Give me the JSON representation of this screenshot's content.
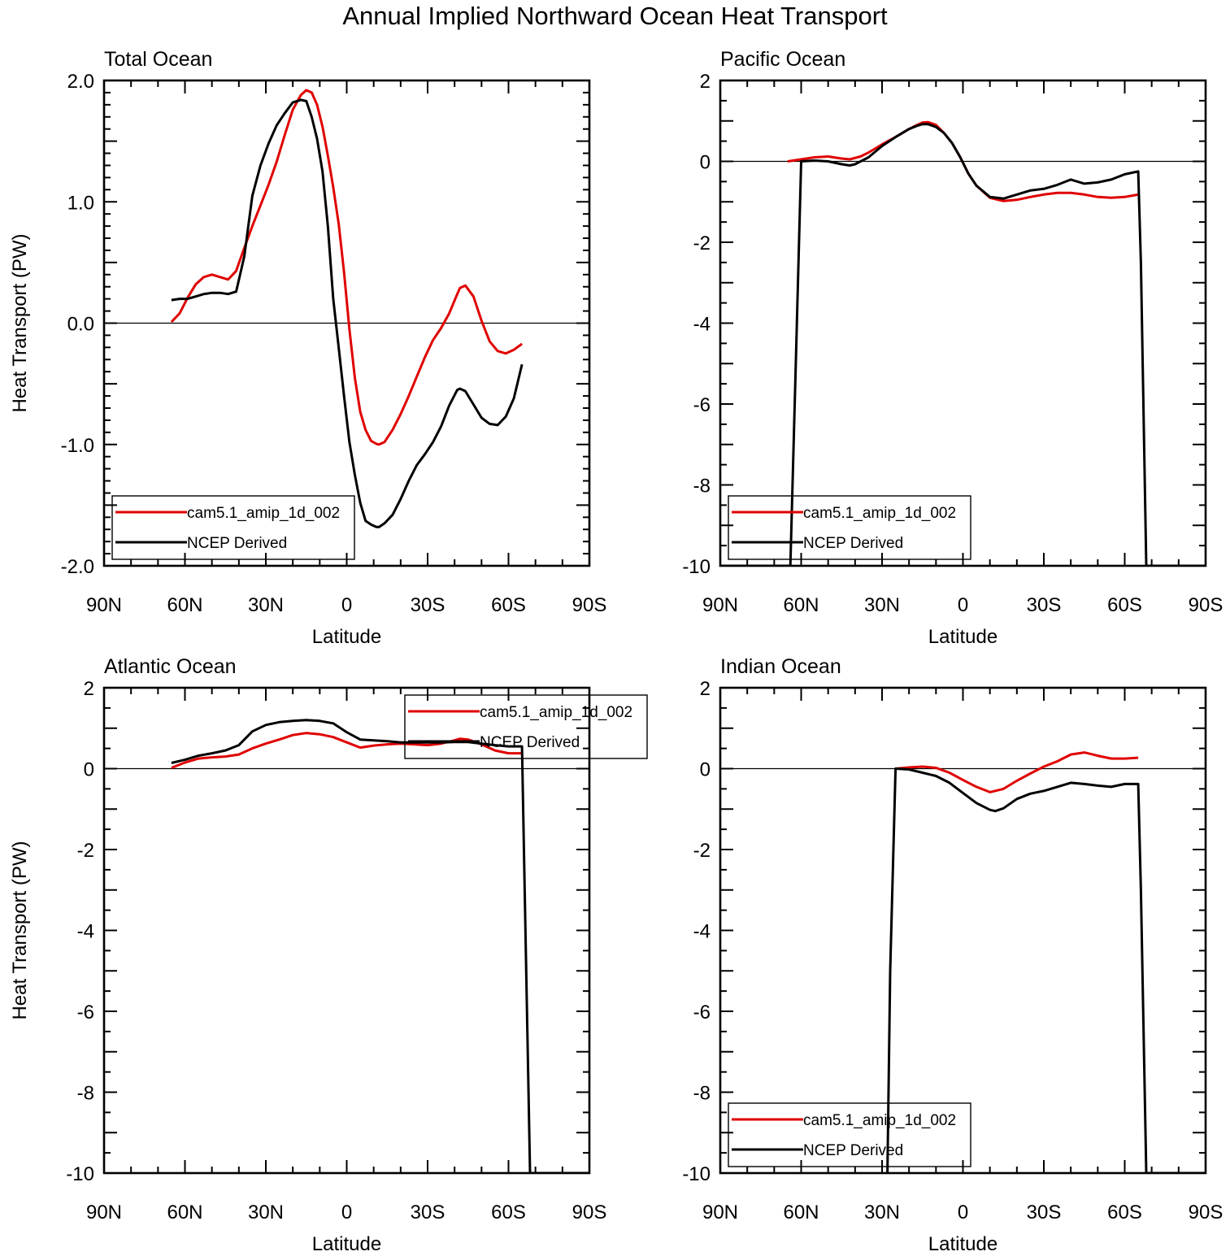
{
  "title": "Annual Implied Northward Ocean Heat Transport",
  "colors": {
    "model": "#e00000",
    "obs": "#000000",
    "axis": "#000000"
  },
  "chart_data": [
    {
      "type": "line",
      "title": "Total Ocean",
      "xlabel": "Latitude",
      "ylabel": "Heat Transport (PW)",
      "xlim": [
        90,
        -90
      ],
      "ylim": [
        -2.0,
        2.0
      ],
      "xticks": [
        90,
        60,
        30,
        0,
        -30,
        -60,
        -90
      ],
      "xticklabels": [
        "90N",
        "60N",
        "30N",
        "0",
        "30S",
        "60S",
        "90S"
      ],
      "yticks": [
        -2,
        -1,
        0,
        1,
        2
      ],
      "yticklabels": [
        "-2.0",
        "-1.0",
        "0.0",
        "1.0",
        "2.0"
      ],
      "ymajor_step": 0.5,
      "yminor_step": 0.1,
      "legend": {
        "position": "bottom-left",
        "entries": [
          "cam5.1_amip_1d_002",
          "NCEP Derived"
        ]
      },
      "series": [
        {
          "name": "cam5.1_amip_1d_002",
          "color": "#e00000",
          "x": [
            65,
            62,
            59,
            56,
            53,
            50,
            47,
            44,
            41,
            38,
            35,
            32,
            29,
            26,
            23,
            20,
            17,
            15,
            13,
            11,
            9,
            7,
            5,
            3,
            1,
            -1,
            -3,
            -5,
            -7,
            -9,
            -11,
            -12,
            -14,
            -17,
            -20,
            -23,
            -26,
            -29,
            -32,
            -35,
            -38,
            -41,
            -42,
            -44,
            -47,
            -50,
            -53,
            -56,
            -59,
            -62,
            -65
          ],
          "y": [
            0.01,
            0.08,
            0.21,
            0.32,
            0.38,
            0.4,
            0.38,
            0.36,
            0.43,
            0.62,
            0.8,
            0.97,
            1.14,
            1.33,
            1.55,
            1.76,
            1.88,
            1.92,
            1.9,
            1.8,
            1.62,
            1.38,
            1.12,
            0.82,
            0.42,
            -0.05,
            -0.45,
            -0.73,
            -0.88,
            -0.97,
            -0.995,
            -1.0,
            -0.98,
            -0.88,
            -0.75,
            -0.6,
            -0.44,
            -0.28,
            -0.14,
            -0.04,
            0.08,
            0.24,
            0.29,
            0.31,
            0.22,
            0.02,
            -0.15,
            -0.23,
            -0.25,
            -0.22,
            -0.17
          ]
        },
        {
          "name": "NCEP Derived",
          "color": "#000000",
          "x": [
            65,
            62,
            59,
            56,
            53,
            50,
            47,
            44,
            41,
            38,
            35,
            32,
            29,
            26,
            23,
            20,
            17,
            15,
            13,
            11,
            9,
            7,
            5,
            3,
            1,
            -1,
            -3,
            -5,
            -7,
            -9,
            -11,
            -12,
            -14,
            -17,
            -20,
            -23,
            -26,
            -29,
            -32,
            -35,
            -38,
            -41,
            -42,
            -44,
            -47,
            -50,
            -53,
            -56,
            -59,
            -62,
            -65
          ],
          "y": [
            0.19,
            0.2,
            0.2,
            0.22,
            0.24,
            0.25,
            0.25,
            0.24,
            0.26,
            0.55,
            1.05,
            1.3,
            1.48,
            1.63,
            1.73,
            1.82,
            1.84,
            1.83,
            1.7,
            1.52,
            1.25,
            0.8,
            0.2,
            -0.2,
            -0.6,
            -0.98,
            -1.25,
            -1.48,
            -1.63,
            -1.66,
            -1.68,
            -1.68,
            -1.65,
            -1.58,
            -1.45,
            -1.3,
            -1.17,
            -1.08,
            -0.98,
            -0.85,
            -0.68,
            -0.55,
            -0.54,
            -0.56,
            -0.67,
            -0.78,
            -0.83,
            -0.84,
            -0.77,
            -0.62,
            -0.34
          ]
        }
      ]
    },
    {
      "type": "line",
      "title": "Pacific Ocean",
      "xlabel": "Latitude",
      "ylabel": "",
      "xlim": [
        90,
        -90
      ],
      "ylim": [
        -10,
        2
      ],
      "xticks": [
        90,
        60,
        30,
        0,
        -30,
        -60,
        -90
      ],
      "xticklabels": [
        "90N",
        "60N",
        "30N",
        "0",
        "30S",
        "60S",
        "90S"
      ],
      "yticks": [
        -10,
        -8,
        -6,
        -4,
        -2,
        0,
        2
      ],
      "yticklabels": [
        "-10",
        "-8",
        "-6",
        "-4",
        "-2",
        "0",
        "2"
      ],
      "ymajor_step": 1,
      "yminor_step": 0.5,
      "legend": {
        "position": "bottom-left",
        "entries": [
          "cam5.1_amip_1d_002",
          "NCEP Derived"
        ]
      },
      "series": [
        {
          "name": "cam5.1_amip_1d_002",
          "color": "#e00000",
          "x": [
            65,
            60,
            55,
            50,
            45,
            42,
            38,
            35,
            30,
            25,
            20,
            17,
            15,
            13,
            10,
            7,
            4,
            1,
            -2,
            -5,
            -10,
            -15,
            -20,
            -25,
            -30,
            -35,
            -40,
            -45,
            -50,
            -55,
            -60,
            -65
          ],
          "y": [
            0.0,
            0.05,
            0.1,
            0.12,
            0.07,
            0.05,
            0.12,
            0.22,
            0.42,
            0.6,
            0.8,
            0.9,
            0.96,
            0.97,
            0.9,
            0.7,
            0.45,
            0.1,
            -0.3,
            -0.6,
            -0.9,
            -0.98,
            -0.95,
            -0.88,
            -0.82,
            -0.78,
            -0.78,
            -0.82,
            -0.88,
            -0.9,
            -0.88,
            -0.82
          ]
        },
        {
          "name": "NCEP Derived",
          "color": "#000000",
          "x": [
            90,
            70,
            68,
            66,
            64,
            62,
            60,
            55,
            50,
            45,
            42,
            40,
            35,
            30,
            25,
            20,
            17,
            15,
            13,
            10,
            7,
            4,
            1,
            -2,
            -5,
            -10,
            -15,
            -20,
            -25,
            -30,
            -35,
            -40,
            -45,
            -50,
            -55,
            -60,
            -65,
            -66,
            -68,
            -70,
            -80,
            -90
          ],
          "y": [
            -10,
            -10,
            -10,
            -10,
            -10,
            -5,
            0.0,
            0.02,
            0.0,
            -0.07,
            -0.1,
            -0.07,
            0.1,
            0.38,
            0.6,
            0.8,
            0.88,
            0.92,
            0.92,
            0.85,
            0.7,
            0.45,
            0.1,
            -0.3,
            -0.6,
            -0.88,
            -0.92,
            -0.82,
            -0.72,
            -0.68,
            -0.58,
            -0.45,
            -0.55,
            -0.52,
            -0.45,
            -0.32,
            -0.25,
            -2.5,
            -10,
            -10,
            -10,
            -10
          ]
        }
      ]
    },
    {
      "type": "line",
      "title": "Atlantic Ocean",
      "xlabel": "Latitude",
      "ylabel": "Heat Transport (PW)",
      "xlim": [
        90,
        -90
      ],
      "ylim": [
        -10,
        2
      ],
      "xticks": [
        90,
        60,
        30,
        0,
        -30,
        -60,
        -90
      ],
      "xticklabels": [
        "90N",
        "60N",
        "30N",
        "0",
        "30S",
        "60S",
        "90S"
      ],
      "yticks": [
        -10,
        -8,
        -6,
        -4,
        -2,
        0,
        2
      ],
      "yticklabels": [
        "-10",
        "-8",
        "-6",
        "-4",
        "-2",
        "0",
        "2"
      ],
      "ymajor_step": 1,
      "yminor_step": 0.5,
      "legend": {
        "position": "top-right",
        "entries": [
          "cam5.1_amip_1d_002",
          "NCEP Derived"
        ]
      },
      "series": [
        {
          "name": "cam5.1_amip_1d_002",
          "color": "#e00000",
          "x": [
            65,
            60,
            55,
            50,
            45,
            40,
            35,
            30,
            25,
            20,
            15,
            10,
            5,
            0,
            -5,
            -10,
            -15,
            -20,
            -25,
            -30,
            -35,
            -40,
            -42,
            -45,
            -50,
            -55,
            -60,
            -65
          ],
          "y": [
            0.02,
            0.15,
            0.25,
            0.28,
            0.3,
            0.35,
            0.5,
            0.62,
            0.72,
            0.83,
            0.88,
            0.85,
            0.78,
            0.65,
            0.52,
            0.57,
            0.6,
            0.62,
            0.6,
            0.58,
            0.62,
            0.7,
            0.74,
            0.72,
            0.6,
            0.45,
            0.38,
            0.38
          ]
        },
        {
          "name": "NCEP Derived",
          "color": "#000000",
          "x": [
            65,
            60,
            55,
            50,
            45,
            40,
            35,
            30,
            25,
            20,
            15,
            10,
            5,
            0,
            -5,
            -10,
            -15,
            -20,
            -25,
            -30,
            -35,
            -40,
            -45,
            -50,
            -55,
            -60,
            -65,
            -66,
            -68,
            -70,
            -80,
            -90
          ],
          "y": [
            0.14,
            0.22,
            0.32,
            0.38,
            0.45,
            0.58,
            0.92,
            1.08,
            1.15,
            1.18,
            1.2,
            1.18,
            1.12,
            0.9,
            0.72,
            0.7,
            0.68,
            0.65,
            0.65,
            0.65,
            0.65,
            0.66,
            0.66,
            0.62,
            0.58,
            0.55,
            0.55,
            -3.0,
            -10,
            -10,
            -10,
            -10
          ]
        }
      ]
    },
    {
      "type": "line",
      "title": "Indian Ocean",
      "xlabel": "Latitude",
      "ylabel": "",
      "xlim": [
        90,
        -90
      ],
      "ylim": [
        -10,
        2
      ],
      "xticks": [
        90,
        60,
        30,
        0,
        -30,
        -60,
        -90
      ],
      "xticklabels": [
        "90N",
        "60N",
        "30N",
        "0",
        "30S",
        "60S",
        "90S"
      ],
      "yticks": [
        -10,
        -8,
        -6,
        -4,
        -2,
        0,
        2
      ],
      "yticklabels": [
        "-10",
        "-8",
        "-6",
        "-4",
        "-2",
        "0",
        "2"
      ],
      "ymajor_step": 1,
      "yminor_step": 0.5,
      "legend": {
        "position": "bottom-left",
        "entries": [
          "cam5.1_amip_1d_002",
          "NCEP Derived"
        ]
      },
      "series": [
        {
          "name": "cam5.1_amip_1d_002",
          "color": "#e00000",
          "x": [
            25,
            20,
            15,
            10,
            5,
            0,
            -5,
            -10,
            -15,
            -20,
            -25,
            -30,
            -35,
            -40,
            -45,
            -50,
            -55,
            -60,
            -65
          ],
          "y": [
            0.0,
            0.03,
            0.05,
            0.02,
            -0.1,
            -0.28,
            -0.45,
            -0.58,
            -0.5,
            -0.3,
            -0.12,
            0.05,
            0.18,
            0.35,
            0.4,
            0.32,
            0.25,
            0.25,
            0.27
          ]
        },
        {
          "name": "NCEP Derived",
          "color": "#000000",
          "x": [
            28,
            27,
            25,
            20,
            15,
            10,
            5,
            0,
            -5,
            -10,
            -12,
            -15,
            -20,
            -25,
            -30,
            -35,
            -40,
            -45,
            -50,
            -55,
            -60,
            -65,
            -66,
            -68,
            -70,
            -80,
            -90
          ],
          "y": [
            -10,
            -5,
            0.0,
            -0.02,
            -0.1,
            -0.18,
            -0.35,
            -0.6,
            -0.85,
            -1.02,
            -1.05,
            -0.98,
            -0.75,
            -0.62,
            -0.55,
            -0.45,
            -0.35,
            -0.38,
            -0.42,
            -0.45,
            -0.38,
            -0.38,
            -3.0,
            -10,
            -10,
            -10,
            -10
          ]
        }
      ]
    }
  ]
}
